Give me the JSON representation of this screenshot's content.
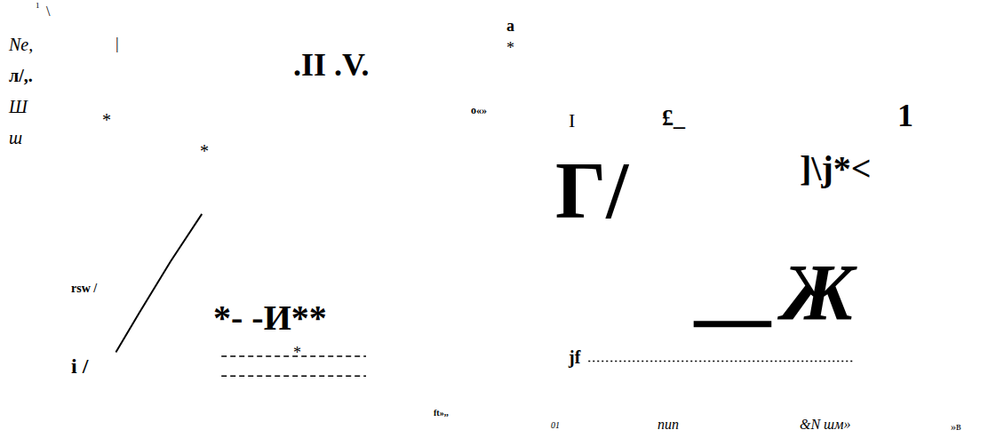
{
  "chart_data": [
    {
      "type": "line",
      "tick_labels": false,
      "xlim": [
        0,
        100
      ],
      "ylim": [
        0,
        100
      ],
      "series": [
        {
          "color": "#000000",
          "line_style": "solid",
          "x": [
            16,
            22,
            30,
            38
          ],
          "values": [
            12,
            22,
            35,
            47
          ]
        },
        {
          "color": "#000000",
          "line_style": "dashed",
          "x": [
            43,
            80
          ],
          "values": [
            11,
            11
          ]
        },
        {
          "color": "#000000",
          "line_style": "dashed",
          "x": [
            43,
            80
          ],
          "values": [
            6,
            6
          ]
        }
      ],
      "annotations": [
        "1",
        "\\",
        "Ne,",
        "л/,.",
        "Ш",
        "ш",
        "|",
        ".II .V.",
        "*",
        "*",
        "rsw /",
        "*- -И**",
        "i /",
        "*",
        "ft»,,"
      ]
    },
    {
      "type": "line",
      "tick_labels": false,
      "xlim": [
        0,
        100
      ],
      "ylim": [
        0,
        100
      ],
      "series": [
        {
          "color": "#000000",
          "line_style": "solid",
          "x": [
            38,
            55
          ],
          "values": [
            29,
            29
          ]
        },
        {
          "color": "#000000",
          "line_style": "dotted",
          "x": [
            15,
            73
          ],
          "values": [
            18,
            18
          ]
        }
      ],
      "annotations": [
        "a",
        "*",
        "o«»",
        "I",
        "£_",
        "1",
        "Г/",
        "]\\j*<",
        "Ж",
        "jf",
        "01",
        "nun",
        "&N шм»",
        "»в"
      ]
    }
  ]
}
